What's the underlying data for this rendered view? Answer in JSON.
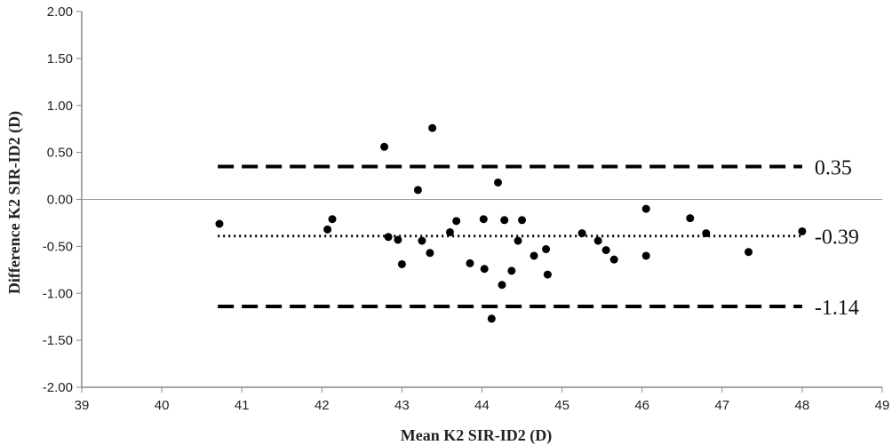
{
  "chart_data": {
    "type": "scatter",
    "title": "",
    "xlabel": "Mean K2 SIR-ID2 (D)",
    "ylabel": "Difference K2 SIR-ID2 (D)",
    "xlim": [
      39,
      49
    ],
    "ylim": [
      -2.0,
      2.0
    ],
    "x_ticks": [
      "39",
      "40",
      "41",
      "42",
      "43",
      "44",
      "45",
      "46",
      "47",
      "48",
      "49"
    ],
    "y_ticks": [
      "2.00",
      "1.50",
      "1.00",
      "0.50",
      "0.00",
      "-0.50",
      "-1.00",
      "-1.50",
      "-2.00"
    ],
    "grid": false,
    "zero_line": true,
    "reference_lines": [
      {
        "label": "0.35",
        "value": 0.35,
        "style": "dashed"
      },
      {
        "label": "-0.39",
        "value": -0.39,
        "style": "dotted"
      },
      {
        "label": "-1.14",
        "value": -1.14,
        "style": "dashed"
      }
    ],
    "line_x_range": [
      40.7,
      48.0
    ],
    "points": [
      [
        40.72,
        -0.26
      ],
      [
        42.07,
        -0.32
      ],
      [
        42.13,
        -0.21
      ],
      [
        42.78,
        0.56
      ],
      [
        42.83,
        -0.4
      ],
      [
        42.95,
        -0.43
      ],
      [
        43.0,
        -0.69
      ],
      [
        43.2,
        0.1
      ],
      [
        43.25,
        -0.44
      ],
      [
        43.35,
        -0.57
      ],
      [
        43.38,
        0.76
      ],
      [
        43.6,
        -0.35
      ],
      [
        43.68,
        -0.23
      ],
      [
        43.85,
        -0.68
      ],
      [
        44.02,
        -0.21
      ],
      [
        44.03,
        -0.74
      ],
      [
        44.12,
        -1.27
      ],
      [
        44.2,
        0.18
      ],
      [
        44.25,
        -0.91
      ],
      [
        44.28,
        -0.22
      ],
      [
        44.37,
        -0.76
      ],
      [
        44.45,
        -0.44
      ],
      [
        44.5,
        -0.22
      ],
      [
        44.65,
        -0.6
      ],
      [
        44.8,
        -0.53
      ],
      [
        44.82,
        -0.8
      ],
      [
        45.25,
        -0.36
      ],
      [
        45.45,
        -0.44
      ],
      [
        45.55,
        -0.54
      ],
      [
        45.65,
        -0.64
      ],
      [
        46.05,
        -0.1
      ],
      [
        46.05,
        -0.6
      ],
      [
        46.6,
        -0.2
      ],
      [
        46.8,
        -0.36
      ],
      [
        47.33,
        -0.56
      ],
      [
        48.0,
        -0.34
      ]
    ],
    "colors": {
      "points": "#000000",
      "lines": "#000000",
      "axis": "#888888"
    }
  }
}
